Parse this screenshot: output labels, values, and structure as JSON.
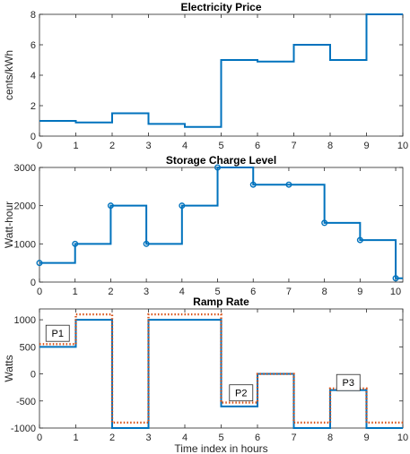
{
  "colors": {
    "series_blue": "#0072BD",
    "series_orange": "#D95319",
    "axis": "#262626"
  },
  "chart_data": [
    {
      "type": "line",
      "style": "stairs",
      "title": "Electricity Price",
      "xlabel": "",
      "ylabel": "cents/kWh",
      "xlim": [
        0,
        10
      ],
      "ylim": [
        0,
        8
      ],
      "xticks": [
        0,
        1,
        2,
        3,
        4,
        5,
        6,
        7,
        8,
        9,
        10
      ],
      "yticks": [
        0,
        2,
        4,
        6,
        8
      ],
      "grid": false,
      "series": [
        {
          "color": "#0072BD",
          "x": [
            0,
            1,
            2,
            3,
            4,
            5,
            6,
            7,
            8,
            9,
            10
          ],
          "y": [
            1.0,
            0.9,
            1.5,
            0.8,
            0.6,
            5.0,
            4.9,
            6.0,
            5.0,
            8.0,
            8.0
          ]
        }
      ]
    },
    {
      "type": "line",
      "style": "stairs",
      "title": "Storage Charge Level",
      "xlabel": "",
      "ylabel": "Watt-hour",
      "xlim": [
        0,
        10.2
      ],
      "ylim": [
        0,
        3000
      ],
      "xticks": [
        0,
        1,
        2,
        3,
        4,
        5,
        6,
        7,
        8,
        9,
        10
      ],
      "yticks": [
        0,
        1000,
        2000,
        3000
      ],
      "grid": false,
      "series": [
        {
          "color": "#0072BD",
          "markers": "circle",
          "x": [
            0,
            1,
            2,
            3,
            4,
            5,
            6,
            7,
            8,
            9,
            10
          ],
          "y": [
            500,
            1000,
            2000,
            1000,
            2000,
            3000,
            2550,
            2550,
            1550,
            1100,
            100
          ],
          "stairs_end": 10.2
        }
      ]
    },
    {
      "type": "line",
      "style": "stairs",
      "title": "Ramp Rate",
      "xlabel": "Time index in hours",
      "ylabel": "Watts",
      "xlim": [
        0,
        10
      ],
      "ylim": [
        -1000,
        1200
      ],
      "xticks": [
        0,
        1,
        2,
        3,
        4,
        5,
        6,
        7,
        8,
        9,
        10
      ],
      "yticks": [
        -1000,
        -500,
        0,
        500,
        1000
      ],
      "grid": false,
      "series": [
        {
          "color": "#0072BD",
          "line": "solid",
          "x": [
            0,
            1,
            2,
            3,
            4,
            5,
            6,
            7,
            8,
            9,
            10
          ],
          "y": [
            500,
            1000,
            -1000,
            1000,
            1000,
            -600,
            0,
            -1000,
            -300,
            -1000,
            -1000
          ]
        },
        {
          "color": "#D95319",
          "line": "dotted",
          "x": [
            0,
            1,
            2,
            3,
            4,
            5,
            6,
            7,
            8,
            9,
            10
          ],
          "y": [
            550,
            1100,
            -900,
            1100,
            1100,
            -530,
            0,
            -900,
            -270,
            -900,
            -900
          ]
        }
      ],
      "annotations": [
        {
          "text": "P1",
          "x": 0.5,
          "y": 750
        },
        {
          "text": "P2",
          "x": 5.55,
          "y": -350
        },
        {
          "text": "P3",
          "x": 8.5,
          "y": -160
        }
      ]
    }
  ]
}
